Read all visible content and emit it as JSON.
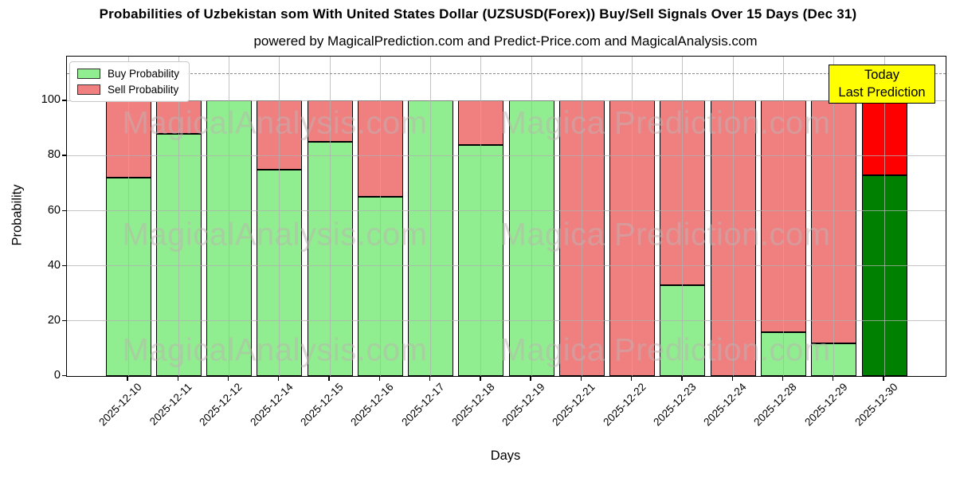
{
  "title": "Probabilities of Uzbekistan som With United States Dollar (UZSUSD(Forex)) Buy/Sell Signals Over 15 Days (Dec 31)",
  "subtitle": "powered by MagicalPrediction.com and Predict-Price.com and MagicalAnalysis.com",
  "legend": {
    "items": [
      {
        "label": "Buy Probability",
        "color": "#90EE90"
      },
      {
        "label": "Sell Probability",
        "color": "#F08080"
      }
    ]
  },
  "annotation": {
    "line1": "Today",
    "line2": "Last Prediction",
    "bg": "#FFFF00",
    "border": "#000000"
  },
  "watermarks": {
    "left": "MagicalAnalysis.com",
    "right": "Magica Prediction.com"
  },
  "axes": {
    "xlabel": "Days",
    "ylabel": "Probability",
    "yticks": [
      0,
      20,
      40,
      60,
      80,
      100
    ],
    "ylim": [
      0,
      116
    ],
    "dashed_line_y": 110,
    "grid": true
  },
  "chart_data": {
    "type": "bar",
    "stacked": true,
    "title": "Probabilities of Uzbekistan som With United States Dollar (UZSUSD(Forex)) Buy/Sell Signals Over 15 Days (Dec 31)",
    "xlabel": "Days",
    "ylabel": "Probability",
    "ylim": [
      0,
      116
    ],
    "legend_position": "upper left",
    "categories": [
      "2025-12-10",
      "2025-12-11",
      "2025-12-12",
      "2025-12-14",
      "2025-12-15",
      "2025-12-16",
      "2025-12-17",
      "2025-12-18",
      "2025-12-19",
      "2025-12-21",
      "2025-12-22",
      "2025-12-23",
      "2025-12-24",
      "2025-12-28",
      "2025-12-29",
      "2025-12-30"
    ],
    "series": [
      {
        "name": "Buy Probability",
        "color": "#90EE90",
        "today_color": "#008000",
        "values": [
          72,
          88,
          100,
          75,
          85,
          65,
          100,
          84,
          100,
          0,
          0,
          33,
          0,
          16,
          12,
          73
        ]
      },
      {
        "name": "Sell Probability",
        "color": "#F08080",
        "today_color": "#FF0000",
        "values": [
          28,
          12,
          0,
          25,
          15,
          35,
          0,
          16,
          0,
          100,
          100,
          67,
          100,
          84,
          88,
          27
        ]
      }
    ],
    "today_index": 15,
    "bar_edge_color": "#000000"
  }
}
